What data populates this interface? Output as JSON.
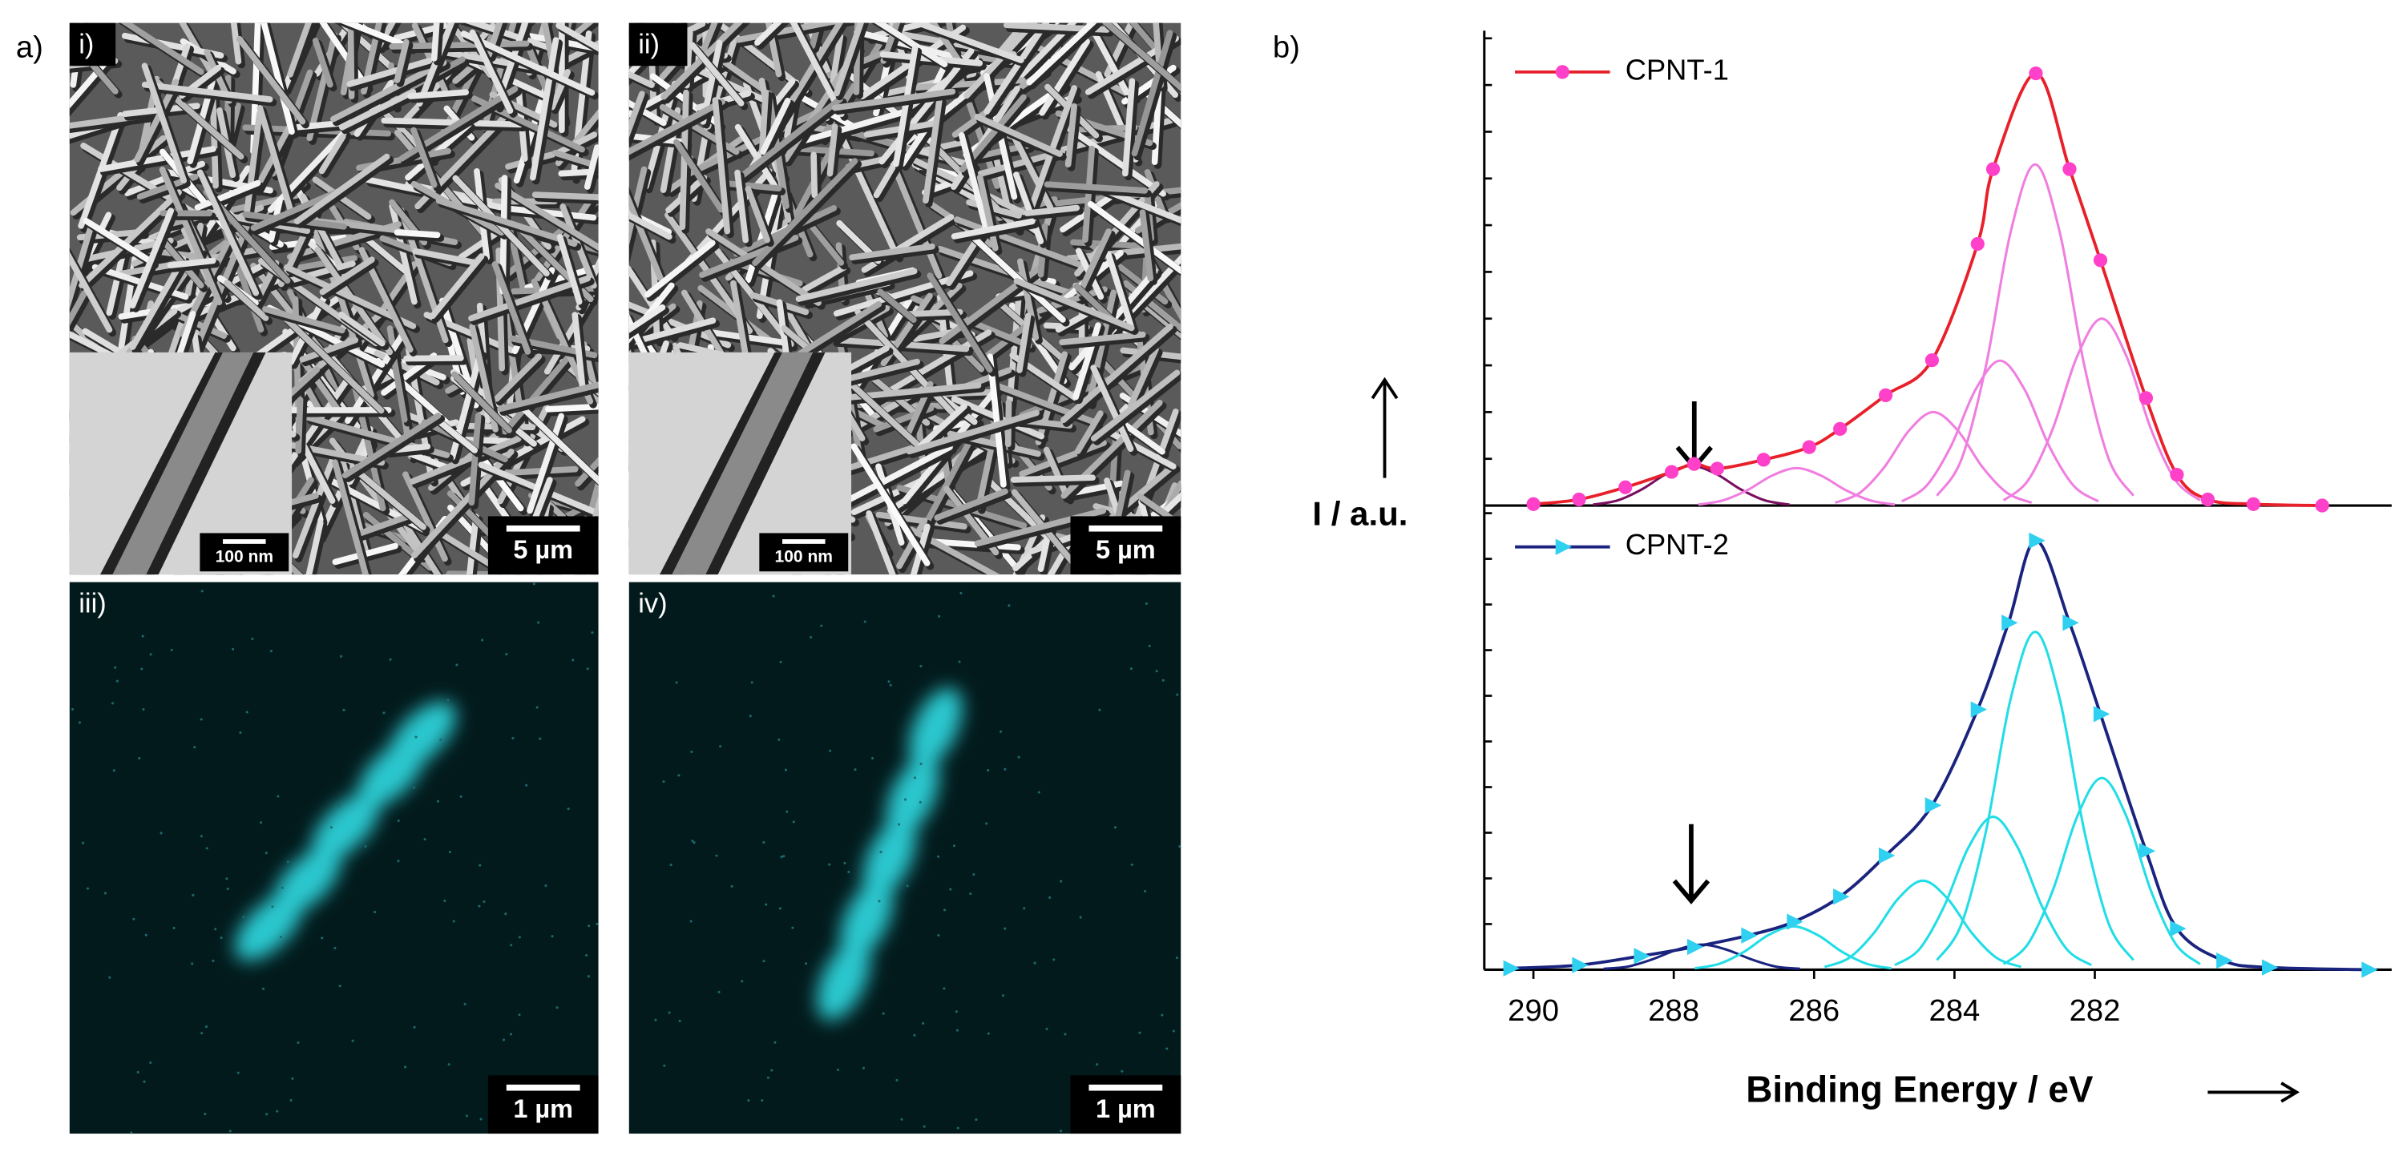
{
  "figure": {
    "panel_a_label": "a)",
    "panel_b_label": "b)",
    "panels": [
      {
        "label": "i)",
        "scale_bar": "5 µm",
        "inset_scale_bar": "100 nm"
      },
      {
        "label": "ii)",
        "scale_bar": "5 µm",
        "inset_scale_bar": "100 nm"
      },
      {
        "label": "iii)",
        "scale_bar": "1 µm"
      },
      {
        "label": "iv)",
        "scale_bar": "1 µm"
      }
    ]
  },
  "chart_data": [
    {
      "type": "line",
      "ylabel": "I / a.u.",
      "xlim": [
        290.7,
        277.77
      ],
      "ylim": [
        0,
        10
      ],
      "yticks": [
        0,
        1,
        2,
        3,
        4,
        5,
        6,
        7,
        8,
        9,
        10
      ],
      "series": [
        {
          "name": "CPNT-1",
          "color": "#ff40c8",
          "line_color": "#e8202a",
          "marker": "circle",
          "x": [
            290.0,
            289.35,
            288.69,
            288.03,
            287.71,
            287.38,
            286.72,
            286.07,
            285.63,
            284.98,
            284.32,
            283.67,
            283.45,
            282.84,
            282.36,
            281.92,
            281.27,
            280.83,
            280.39,
            279.74,
            278.76
          ],
          "values": [
            0.03,
            0.13,
            0.39,
            0.72,
            0.89,
            0.79,
            0.98,
            1.25,
            1.64,
            2.36,
            3.11,
            5.6,
            7.2,
            9.25,
            7.2,
            5.25,
            2.3,
            0.66,
            0.13,
            0.03,
            0.0
          ]
        },
        {
          "color": "#f07ee0",
          "x": [
            280.5,
            280.85,
            281.2,
            281.55,
            281.9,
            282.25,
            282.6,
            282.95,
            283.3
          ],
          "values": [
            0.11,
            0.54,
            1.64,
            3.2,
            4.0,
            3.2,
            1.64,
            0.54,
            0.11
          ]
        },
        {
          "color": "#f07ee0",
          "x": [
            281.45,
            281.8,
            282.15,
            282.5,
            282.85,
            283.2,
            283.55,
            283.9,
            284.25
          ],
          "values": [
            0.21,
            0.99,
            3.0,
            5.85,
            7.3,
            5.85,
            3.0,
            0.99,
            0.21
          ]
        },
        {
          "color": "#f07ee0",
          "x": [
            281.95,
            282.3,
            282.65,
            283.0,
            283.35,
            283.7,
            284.05,
            284.4,
            284.75
          ],
          "values": [
            0.09,
            0.42,
            1.27,
            2.48,
            3.1,
            2.48,
            1.27,
            0.42,
            0.09
          ]
        },
        {
          "color": "#f07ee0",
          "x": [
            282.9,
            283.25,
            283.6,
            283.95,
            284.3,
            284.65,
            285.0,
            285.35,
            285.7
          ],
          "values": [
            0.06,
            0.27,
            0.82,
            1.6,
            2.0,
            1.6,
            0.82,
            0.27,
            0.06
          ]
        },
        {
          "color": "#f07ee0",
          "x": [
            284.85,
            285.2,
            285.55,
            285.9,
            286.25,
            286.6,
            286.95,
            287.3,
            287.65
          ],
          "values": [
            0.02,
            0.11,
            0.33,
            0.64,
            0.8,
            0.64,
            0.33,
            0.11,
            0.02
          ]
        },
        {
          "color": "#7a1060",
          "x": [
            286.35,
            286.7,
            287.05,
            287.4,
            287.75,
            288.1,
            288.45,
            288.8,
            289.15
          ],
          "values": [
            0.02,
            0.11,
            0.35,
            0.68,
            0.85,
            0.68,
            0.35,
            0.11,
            0.02
          ]
        }
      ]
    },
    {
      "type": "line",
      "xlabel": "Binding Energy / eV",
      "xlim": [
        290.7,
        277.77
      ],
      "ylim": [
        0,
        10
      ],
      "yticks": [
        0,
        1,
        2,
        3,
        4,
        5,
        6,
        7,
        8,
        9,
        10
      ],
      "xticks": [
        290,
        288,
        286,
        284,
        282
      ],
      "series": [
        {
          "name": "CPNT-2",
          "color": "#30d0f0",
          "line_color": "#1a237e",
          "marker": "triangle",
          "x": [
            290.33,
            289.35,
            288.47,
            287.71,
            286.94,
            286.29,
            285.63,
            284.98,
            284.32,
            283.67,
            283.23,
            282.84,
            282.36,
            281.92,
            281.27,
            280.83,
            280.17,
            279.52,
            278.1
          ],
          "values": [
            0.03,
            0.1,
            0.3,
            0.5,
            0.75,
            1.05,
            1.6,
            2.5,
            3.6,
            5.7,
            7.6,
            9.4,
            7.6,
            5.6,
            2.6,
            0.9,
            0.2,
            0.05,
            0.0
          ]
        },
        {
          "color": "#22dde6",
          "x": [
            280.5,
            280.85,
            281.2,
            281.55,
            281.9,
            282.25,
            282.6,
            282.95,
            283.3
          ],
          "values": [
            0.12,
            0.57,
            1.73,
            3.36,
            4.2,
            3.36,
            1.73,
            0.57,
            0.12
          ]
        },
        {
          "color": "#22dde6",
          "x": [
            281.45,
            281.8,
            282.15,
            282.5,
            282.85,
            283.2,
            283.55,
            283.9,
            284.25
          ],
          "values": [
            0.21,
            1.0,
            3.04,
            5.93,
            7.4,
            5.93,
            3.04,
            1.0,
            0.21
          ]
        },
        {
          "color": "#22dde6",
          "x": [
            282.05,
            282.4,
            282.75,
            283.1,
            283.45,
            283.8,
            284.15,
            284.5,
            284.85
          ],
          "values": [
            0.1,
            0.45,
            1.38,
            2.68,
            3.35,
            2.68,
            1.38,
            0.45,
            0.1
          ]
        },
        {
          "color": "#22dde6",
          "x": [
            283.05,
            283.4,
            283.75,
            284.1,
            284.45,
            284.8,
            285.15,
            285.5,
            285.85
          ],
          "values": [
            0.06,
            0.26,
            0.8,
            1.56,
            1.95,
            1.56,
            0.8,
            0.26,
            0.06
          ]
        },
        {
          "color": "#22dde6",
          "x": [
            284.9,
            285.25,
            285.6,
            285.95,
            286.3,
            286.65,
            287.0,
            287.35,
            287.7
          ],
          "values": [
            0.03,
            0.13,
            0.39,
            0.76,
            0.95,
            0.76,
            0.39,
            0.13,
            0.03
          ]
        },
        {
          "color": "#1a237e",
          "x": [
            286.2,
            286.55,
            286.9,
            287.25,
            287.6,
            287.95,
            288.3,
            288.65,
            289.0
          ],
          "values": [
            0.02,
            0.07,
            0.23,
            0.44,
            0.55,
            0.44,
            0.23,
            0.07,
            0.02
          ]
        }
      ]
    }
  ]
}
